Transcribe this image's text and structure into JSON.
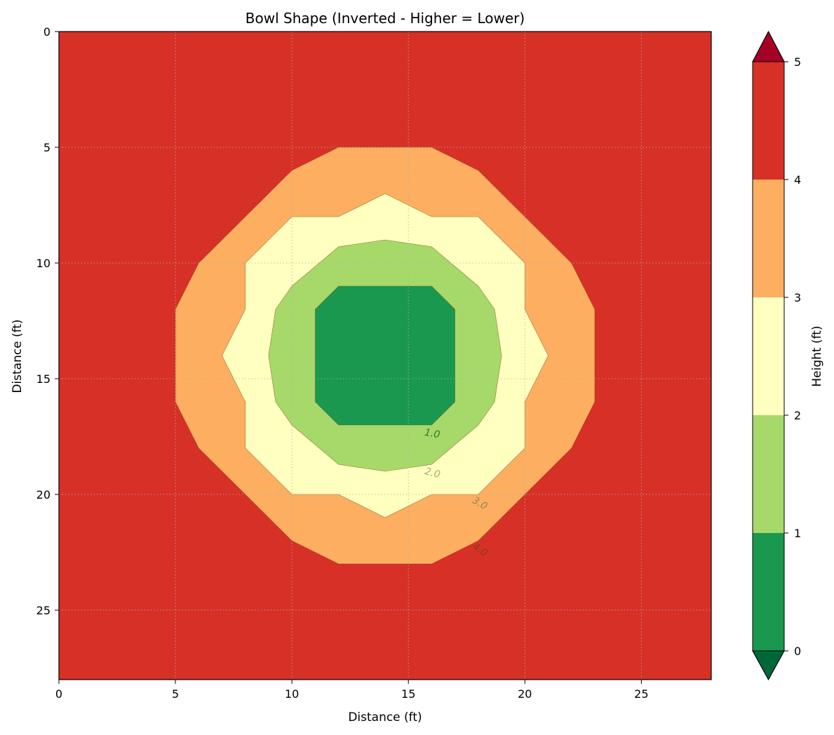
{
  "chart_data": {
    "type": "heatmap",
    "subtype": "filled-contour",
    "title": "Bowl Shape (Inverted - Higher = Lower)",
    "xlabel": "Distance (ft)",
    "ylabel": "Distance (ft)",
    "xlim": [
      0,
      28
    ],
    "ylim": [
      28,
      0
    ],
    "y_inverted": true,
    "grid": true,
    "x_ticks": [
      "0",
      "5",
      "10",
      "15",
      "20",
      "25"
    ],
    "y_ticks": [
      "0",
      "5",
      "10",
      "15",
      "20",
      "25"
    ],
    "colormap": "RdYlGn_r",
    "colorbar": {
      "label": "Height (ft)",
      "ticks": [
        "0",
        "1",
        "2",
        "3",
        "4",
        "5"
      ],
      "extend": "both",
      "levels": [
        {
          "range": [
            0,
            1
          ],
          "color": "#1a9850"
        },
        {
          "range": [
            1,
            2
          ],
          "color": "#a6d96a"
        },
        {
          "range": [
            2,
            3
          ],
          "color": "#ffffbf"
        },
        {
          "range": [
            3,
            4
          ],
          "color": "#fdae61"
        },
        {
          "range": [
            4,
            5
          ],
          "color": "#d73027"
        }
      ],
      "under_color": "#006837",
      "over_color": "#a50026"
    },
    "background_level": "4-5",
    "contours": [
      {
        "level": 4,
        "fill": "#fdae61",
        "points": [
          [
            12,
            5
          ],
          [
            16,
            5
          ],
          [
            18,
            6
          ],
          [
            22,
            10
          ],
          [
            23,
            12
          ],
          [
            23,
            16
          ],
          [
            22,
            18
          ],
          [
            18,
            22
          ],
          [
            16,
            23
          ],
          [
            12,
            23
          ],
          [
            10,
            22
          ],
          [
            6,
            18
          ],
          [
            5,
            16
          ],
          [
            5,
            12
          ],
          [
            6,
            10
          ],
          [
            10,
            6
          ]
        ]
      },
      {
        "level": 3,
        "fill": "#ffffbf",
        "points": [
          [
            14,
            7
          ],
          [
            16,
            8
          ],
          [
            18,
            8
          ],
          [
            20,
            10
          ],
          [
            20,
            12
          ],
          [
            21,
            14
          ],
          [
            20,
            16
          ],
          [
            20,
            18
          ],
          [
            18,
            20
          ],
          [
            16,
            20
          ],
          [
            14,
            21
          ],
          [
            12,
            20
          ],
          [
            10,
            20
          ],
          [
            8,
            18
          ],
          [
            8,
            16
          ],
          [
            7,
            14
          ],
          [
            8,
            12
          ],
          [
            8,
            10
          ],
          [
            10,
            8
          ],
          [
            12,
            8
          ]
        ]
      },
      {
        "level": 2,
        "fill": "#a6d96a",
        "points": [
          [
            14,
            9
          ],
          [
            16,
            9.3
          ],
          [
            18,
            11
          ],
          [
            18.7,
            12
          ],
          [
            19,
            14
          ],
          [
            18.7,
            16
          ],
          [
            18,
            17
          ],
          [
            16,
            18.7
          ],
          [
            14,
            19
          ],
          [
            12,
            18.7
          ],
          [
            10,
            17
          ],
          [
            9.3,
            16
          ],
          [
            9,
            14
          ],
          [
            9.3,
            12
          ],
          [
            10,
            11
          ],
          [
            12,
            9.3
          ]
        ]
      },
      {
        "level": 1,
        "fill": "#1a9850",
        "points": [
          [
            12,
            11
          ],
          [
            16,
            11
          ],
          [
            17,
            12
          ],
          [
            17,
            16
          ],
          [
            16,
            17
          ],
          [
            12,
            17
          ],
          [
            11,
            16
          ],
          [
            11,
            12
          ]
        ]
      }
    ],
    "contour_labels": [
      {
        "text": "1.0",
        "x": 16.0,
        "y": 17.5,
        "rotation": 10
      },
      {
        "text": "2.0",
        "x": 16.0,
        "y": 19.2,
        "rotation": 15
      },
      {
        "text": "3.0",
        "x": 18.0,
        "y": 20.5,
        "rotation": 30
      },
      {
        "text": "4.0",
        "x": 18.0,
        "y": 22.5,
        "rotation": 35
      }
    ]
  }
}
